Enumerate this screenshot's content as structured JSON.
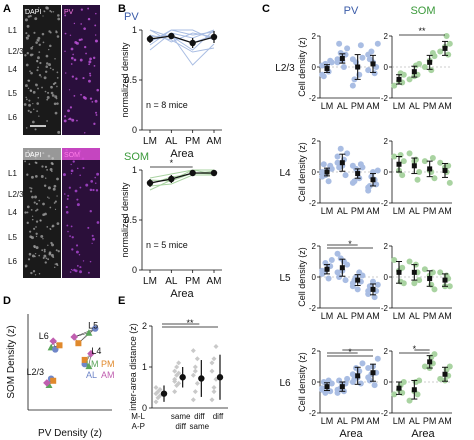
{
  "panel_letters": [
    "A",
    "B",
    "C",
    "D",
    "E"
  ],
  "layers": [
    "L1",
    "L2/3",
    "L4",
    "L5",
    "L6"
  ],
  "micrograph": {
    "top_channels": [
      "DAPI",
      "PV"
    ],
    "bottom_channels": [
      "DAPI",
      "SOM"
    ]
  },
  "colors": {
    "pv": "#3a5ba8",
    "pv_light": "#a9bde3",
    "pv_marker": "#7f9bd4",
    "som": "#3b9a3b",
    "som_light": "#a9d3a1",
    "mean": "#111111",
    "lm": "#5aa55a",
    "al": "#6f86c8",
    "pm": "#e0892c",
    "am": "#c05fb0",
    "dapi_bg": "#1a1a1a",
    "pv_bg": "#2a0f3c",
    "som_bg": "#2b0f3a"
  },
  "chart_data": [
    {
      "id": "B-PV",
      "type": "line",
      "title": "PV",
      "xlabel": "Area",
      "ylabel": "normalized density",
      "categories": [
        "LM",
        "AL",
        "PM",
        "AM"
      ],
      "ylim": [
        0,
        1
      ],
      "yticks": [
        0,
        0.5,
        1
      ],
      "mean": [
        0.91,
        0.94,
        0.87,
        0.93
      ],
      "err": [
        0.04,
        0.03,
        0.05,
        0.06
      ],
      "individual": [
        [
          0.85,
          1.0,
          0.95,
          0.98
        ],
        [
          0.9,
          0.94,
          0.8,
          1.0
        ],
        [
          0.95,
          0.9,
          0.78,
          0.82
        ],
        [
          0.88,
          1.0,
          1.0,
          0.9
        ],
        [
          1.0,
          0.93,
          0.87,
          0.95
        ],
        [
          0.8,
          0.97,
          0.92,
          1.0
        ],
        [
          0.93,
          0.95,
          0.65,
          0.86
        ],
        [
          1.0,
          0.88,
          0.97,
          0.93
        ]
      ],
      "note": "n = 8 mice"
    },
    {
      "id": "B-SOM",
      "type": "line",
      "title": "SOM",
      "xlabel": "Area",
      "ylabel": "normalized density",
      "categories": [
        "LM",
        "AL",
        "PM",
        "AM"
      ],
      "ylim": [
        0,
        1
      ],
      "yticks": [
        0,
        0.5,
        1
      ],
      "mean": [
        0.87,
        0.91,
        0.97,
        0.97
      ],
      "err": [
        0.04,
        0.04,
        0.02,
        0.02
      ],
      "individual": [
        [
          0.8,
          0.9,
          1.0,
          0.96
        ],
        [
          0.86,
          0.93,
          0.96,
          0.99
        ],
        [
          0.92,
          0.96,
          1.0,
          1.0
        ],
        [
          0.84,
          0.86,
          0.95,
          0.95
        ],
        [
          0.9,
          0.89,
          0.97,
          0.96
        ]
      ],
      "sig": [
        {
          "from": 0,
          "to": 2,
          "label": "*"
        }
      ],
      "note": "n = 5 mice"
    },
    {
      "id": "C",
      "type": "scatter",
      "columns": [
        "PV",
        "SOM"
      ],
      "ylabel": "Cell density (z)",
      "xlabel": "Area",
      "categories": [
        "LM",
        "AL",
        "PM",
        "AM"
      ],
      "ylim": [
        -2,
        2
      ],
      "yticks": [
        -2,
        0,
        2
      ],
      "rows": [
        {
          "layer": "L2/3",
          "pv": {
            "mean": [
              -0.1,
              0.55,
              0.0,
              0.2
            ],
            "err": [
              0.25,
              0.3,
              0.8,
              0.55
            ],
            "points": [
              [
                -0.5,
                0.3,
                0.4,
                -0.3,
                0.0,
                0.2,
                -0.6,
                0.1
              ],
              [
                0.5,
                1.2,
                0.8,
                0.0,
                0.4,
                0.9,
                1.5,
                0.3
              ],
              [
                -1.2,
                0.6,
                1.4,
                -0.5,
                0.0,
                0.3,
                -0.8,
                0.5
              ],
              [
                0.8,
                1.5,
                0.0,
                -0.4,
                0.3,
                1.0,
                0.5,
                -0.2
              ]
            ]
          },
          "som": {
            "mean": [
              -0.8,
              -0.3,
              0.3,
              1.2
            ],
            "err": [
              0.3,
              0.35,
              0.45,
              0.45
            ],
            "points": [
              [
                -1.2,
                -0.5,
                -1.0,
                -0.4,
                -0.9
              ],
              [
                -0.8,
                0.2,
                -0.5,
                0.1,
                -0.6
              ],
              [
                0.0,
                0.7,
                0.9,
                -0.2,
                0.4
              ],
              [
                1.0,
                1.5,
                0.8,
                2.0,
                1.3
              ]
            ],
            "sig": [
              {
                "from": 0,
                "to": 3,
                "label": "**"
              }
            ]
          }
        },
        {
          "layer": "L4",
          "pv": {
            "mean": [
              0.0,
              0.6,
              -0.1,
              -0.5
            ],
            "err": [
              0.25,
              0.55,
              0.3,
              0.4
            ],
            "points": [
              [
                -0.3,
                0.2,
                0.4,
                -0.6,
                0.1,
                -0.2,
                0.5,
                0.0
              ],
              [
                1.0,
                1.2,
                -0.2,
                0.8,
                0.4,
                1.5,
                0.3,
                0.6
              ],
              [
                -0.7,
                0.3,
                0.5,
                -0.4,
                0.0,
                0.2,
                -0.6,
                0.4
              ],
              [
                -1.2,
                0.1,
                -0.8,
                -0.5,
                0.0,
                -0.3,
                -0.9,
                -1.0
              ]
            ]
          },
          "som": {
            "mean": [
              0.5,
              0.4,
              0.2,
              0.1
            ],
            "err": [
              0.5,
              0.5,
              0.5,
              0.45
            ],
            "points": [
              [
                1.0,
                0.7,
                -0.2,
                1.1,
                0.1
              ],
              [
                1.2,
                0.0,
                -0.5,
                0.8,
                0.7
              ],
              [
                0.7,
                -0.4,
                0.9,
                0.0,
                0.1
              ],
              [
                0.6,
                -0.7,
                0.4,
                0.0,
                0.3
              ]
            ]
          }
        },
        {
          "layer": "L5",
          "pv": {
            "mean": [
              0.5,
              0.6,
              -0.2,
              -0.8
            ],
            "err": [
              0.3,
              0.55,
              0.35,
              0.35
            ],
            "points": [
              [
                0.2,
                1.1,
                0.7,
                -0.1,
                0.5,
                0.9,
                0.3,
                0.4
              ],
              [
                1.5,
                0.8,
                -0.2,
                1.0,
                0.4,
                1.2,
                0.0,
                0.3
              ],
              [
                -0.6,
                0.1,
                -0.3,
                0.3,
                -0.8,
                0.0,
                -0.2,
                -0.4
              ],
              [
                -1.1,
                -0.5,
                -0.9,
                -1.3,
                -0.3,
                -0.7,
                -0.6,
                -0.9
              ]
            ],
            "sig": [
              {
                "from": 0,
                "to": 3,
                "label": "*"
              },
              {
                "from": 0,
                "to": 2,
                "label": ""
              }
            ]
          },
          "som": {
            "mean": [
              0.3,
              0.3,
              -0.1,
              -0.2
            ],
            "err": [
              0.7,
              0.5,
              0.5,
              0.4
            ],
            "points": [
              [
                1.1,
                -0.4,
                0.6,
                -0.3,
                0.4
              ],
              [
                1.0,
                -0.2,
                0.3,
                0.8,
                -0.4
              ],
              [
                0.5,
                -0.8,
                0.3,
                -0.5,
                0.1
              ],
              [
                0.3,
                -0.6,
                -0.1,
                0.1,
                -0.6
              ]
            ]
          }
        },
        {
          "layer": "L6",
          "pv": {
            "mean": [
              -0.3,
              -0.3,
              0.4,
              0.6
            ],
            "err": [
              0.25,
              0.3,
              0.55,
              0.55
            ],
            "points": [
              [
                -0.5,
                -0.1,
                -0.6,
                0.1,
                -0.3,
                -0.7,
                0.0,
                -0.4
              ],
              [
                -0.7,
                0.2,
                -0.1,
                -0.6,
                -0.2,
                -0.4,
                0.1,
                -0.5
              ],
              [
                0.0,
                1.2,
                -0.1,
                0.7,
                0.3,
                0.9,
                0.2,
                0.5
              ],
              [
                0.3,
                1.5,
                0.6,
                -0.2,
                1.0,
                0.5,
                0.1,
                0.9
              ]
            ],
            "sig": [
              {
                "from": 0,
                "to": 3,
                "label": "*"
              },
              {
                "from": 0,
                "to": 2,
                "label": ""
              },
              {
                "from": 1,
                "to": 3,
                "label": ""
              }
            ]
          },
          "som": {
            "mean": [
              -0.4,
              -0.5,
              1.3,
              0.5
            ],
            "err": [
              0.4,
              0.6,
              0.4,
              0.45
            ],
            "points": [
              [
                -0.8,
                0.0,
                -0.7,
                -0.2,
                -0.5
              ],
              [
                -1.2,
                0.1,
                -0.8,
                0.0,
                -0.6
              ],
              [
                1.0,
                1.8,
                1.2,
                1.6,
                0.9
              ],
              [
                0.2,
                1.0,
                0.4,
                0.8,
                0.1
              ]
            ],
            "sig": [
              {
                "from": 0,
                "to": 2,
                "label": "*"
              },
              {
                "from": 1,
                "to": 2,
                "label": ""
              }
            ]
          }
        }
      ]
    },
    {
      "id": "D",
      "type": "scatter",
      "xlabel": "PV Density (z)",
      "ylabel": "SOM Density (z)",
      "xlim": [
        -1,
        1
      ],
      "ylim": [
        -1,
        1.3
      ],
      "legend": [
        [
          "LM",
          "PM"
        ],
        [
          "AL",
          "AM"
        ]
      ],
      "legend_colors": [
        [
          "lm",
          "pm"
        ],
        [
          "al",
          "am"
        ]
      ],
      "groups": [
        {
          "label": "L5",
          "points": [
            {
              "area": "LM",
              "x": 0.45,
              "y": 0.85
            },
            {
              "area": "AL",
              "x": 0.6,
              "y": 0.95
            },
            {
              "area": "PM",
              "x": 0.2,
              "y": 0.6
            },
            {
              "area": "AM",
              "x": 0.1,
              "y": 0.75
            }
          ]
        },
        {
          "label": "L6",
          "points": [
            {
              "area": "LM",
              "x": -0.45,
              "y": 0.5
            },
            {
              "area": "AL",
              "x": -0.35,
              "y": 0.45
            },
            {
              "area": "PM",
              "x": -0.25,
              "y": 0.55
            },
            {
              "area": "AM",
              "x": -0.4,
              "y": 0.65
            }
          ]
        },
        {
          "label": "L4",
          "points": [
            {
              "area": "LM",
              "x": 0.45,
              "y": 0.05
            },
            {
              "area": "AL",
              "x": 0.35,
              "y": 0.1
            },
            {
              "area": "PM",
              "x": 0.35,
              "y": 0.2
            },
            {
              "area": "AM",
              "x": 0.5,
              "y": 0.35
            }
          ]
        },
        {
          "label": "L2/3",
          "points": [
            {
              "area": "LM",
              "x": -0.5,
              "y": -0.4
            },
            {
              "area": "AL",
              "x": -0.45,
              "y": -0.25
            },
            {
              "area": "PM",
              "x": -0.4,
              "y": -0.3
            },
            {
              "area": "AM",
              "x": -0.55,
              "y": -0.35
            }
          ]
        }
      ]
    },
    {
      "id": "E",
      "type": "scatter",
      "ylabel": "inter-area distance (z)",
      "ylim": [
        0,
        2
      ],
      "yticks": [
        0,
        1,
        2
      ],
      "row_labels": [
        "M-L",
        "A-P"
      ],
      "groups": [
        {
          "ml": "",
          "ap": "",
          "mean": 0.35,
          "err": 0.2,
          "points": [
            0.15,
            0.25,
            0.3,
            0.35,
            0.4,
            0.45,
            0.5
          ]
        },
        {
          "ml": "same",
          "ap": "diff",
          "mean": 0.75,
          "err": 0.25,
          "points": [
            0.4,
            0.55,
            0.6,
            0.7,
            0.8,
            0.85,
            0.9,
            1.0,
            1.1,
            0.65
          ]
        },
        {
          "ml": "diff",
          "ap": "same",
          "mean": 0.72,
          "err": 0.45,
          "points": [
            0.2,
            0.4,
            0.6,
            0.8,
            1.0,
            1.2,
            1.4,
            0.9
          ]
        },
        {
          "ml": "diff",
          "ap": "",
          "mean": 0.75,
          "err": 0.55,
          "points": [
            0.2,
            0.5,
            0.7,
            0.9,
            1.2,
            1.5,
            1.1,
            0.4
          ]
        }
      ],
      "sig": [
        {
          "from": 0,
          "to": 3,
          "label": "**"
        },
        {
          "from": 0,
          "to": 2,
          "label": ""
        }
      ]
    }
  ]
}
